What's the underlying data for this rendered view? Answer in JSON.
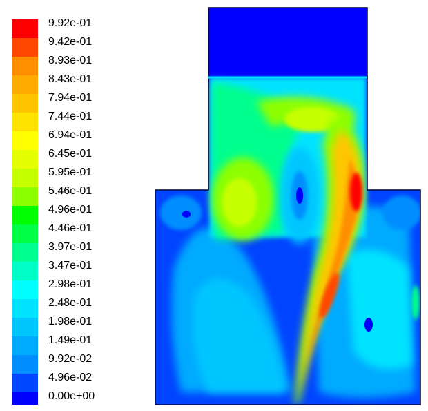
{
  "legend": {
    "labels": [
      "9.92e-01",
      "9.42e-01",
      "8.93e-01",
      "8.43e-01",
      "7.94e-01",
      "7.44e-01",
      "6.94e-01",
      "6.45e-01",
      "5.95e-01",
      "5.46e-01",
      "4.96e-01",
      "4.46e-01",
      "3.97e-01",
      "3.47e-01",
      "2.98e-01",
      "2.48e-01",
      "1.98e-01",
      "1.49e-01",
      "9.92e-02",
      "4.96e-02",
      "0.00e+00"
    ],
    "colors": [
      "#ff0000",
      "#ff4700",
      "#ff8e00",
      "#ffaa00",
      "#ffc600",
      "#ffe300",
      "#ffff00",
      "#e3ff00",
      "#c6ff00",
      "#8eff00",
      "#00ff00",
      "#00ff47",
      "#00ff8e",
      "#00ffc6",
      "#00ffff",
      "#00e3ff",
      "#00c6ff",
      "#00aaff",
      "#008eff",
      "#0047ff"
    ],
    "min_color": "#0000ff"
  },
  "plot": {
    "background_color": "#0000ff"
  }
}
